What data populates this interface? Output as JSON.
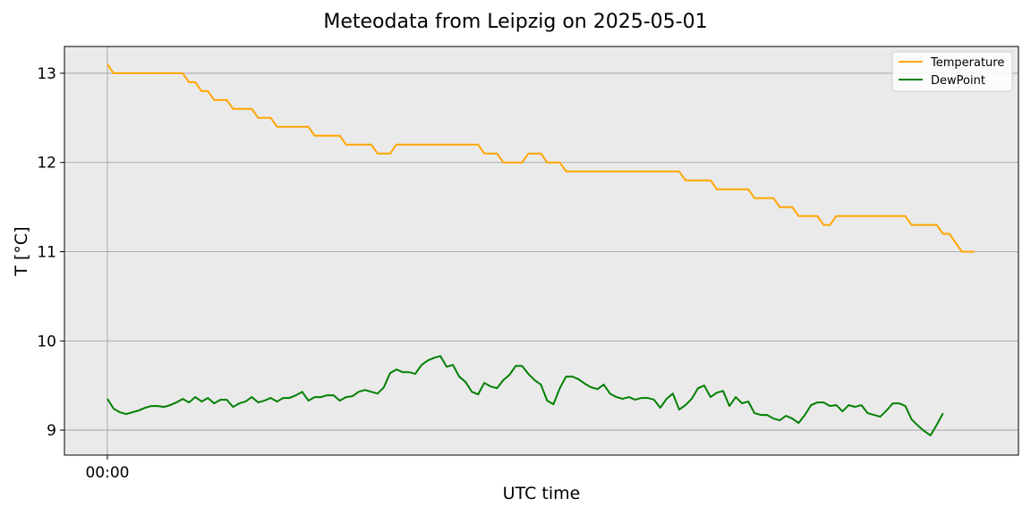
{
  "chart_data": {
    "type": "line",
    "title": "Meteodata from Leipzig on 2025-05-01",
    "xlabel": "UTC time",
    "ylabel": "T [°C]",
    "xlim": [
      -6.83,
      145.0
    ],
    "ylim": [
      8.72,
      13.3
    ],
    "x_tick_labels": [
      "00:00"
    ],
    "y_ticks": [
      9,
      10,
      11,
      12,
      13
    ],
    "grid": true,
    "legend_placement": "top-right",
    "series": [
      {
        "name": "Temperature",
        "color": "#ffa500",
        "values": [
          13.1,
          13.0,
          13.0,
          13.0,
          13.0,
          13.0,
          13.0,
          13.0,
          13.0,
          13.0,
          13.0,
          13.0,
          13.0,
          12.9,
          12.9,
          12.8,
          12.8,
          12.7,
          12.7,
          12.7,
          12.6,
          12.6,
          12.6,
          12.6,
          12.5,
          12.5,
          12.5,
          12.4,
          12.4,
          12.4,
          12.4,
          12.4,
          12.4,
          12.3,
          12.3,
          12.3,
          12.3,
          12.3,
          12.2,
          12.2,
          12.2,
          12.2,
          12.2,
          12.1,
          12.1,
          12.1,
          12.2,
          12.2,
          12.2,
          12.2,
          12.2,
          12.2,
          12.2,
          12.2,
          12.2,
          12.2,
          12.2,
          12.2,
          12.2,
          12.2,
          12.1,
          12.1,
          12.1,
          12.0,
          12.0,
          12.0,
          12.0,
          12.1,
          12.1,
          12.1,
          12.0,
          12.0,
          12.0,
          11.9,
          11.9,
          11.9,
          11.9,
          11.9,
          11.9,
          11.9,
          11.9,
          11.9,
          11.9,
          11.9,
          11.9,
          11.9,
          11.9,
          11.9,
          11.9,
          11.9,
          11.9,
          11.9,
          11.8,
          11.8,
          11.8,
          11.8,
          11.8,
          11.7,
          11.7,
          11.7,
          11.7,
          11.7,
          11.7,
          11.6,
          11.6,
          11.6,
          11.6,
          11.5,
          11.5,
          11.5,
          11.4,
          11.4,
          11.4,
          11.4,
          11.3,
          11.3,
          11.4,
          11.4,
          11.4,
          11.4,
          11.4,
          11.4,
          11.4,
          11.4,
          11.4,
          11.4,
          11.4,
          11.4,
          11.3,
          11.3,
          11.3,
          11.3,
          11.3,
          11.2,
          11.2,
          11.1,
          11.0,
          11.0,
          11.0
        ]
      },
      {
        "name": "DewPoint",
        "color": "#008000",
        "values": [
          9.35,
          9.24,
          9.2,
          9.18,
          9.2,
          9.22,
          9.25,
          9.27,
          9.27,
          9.26,
          9.28,
          9.31,
          9.35,
          9.31,
          9.37,
          9.32,
          9.36,
          9.3,
          9.34,
          9.34,
          9.26,
          9.3,
          9.32,
          9.37,
          9.31,
          9.33,
          9.36,
          9.32,
          9.36,
          9.36,
          9.39,
          9.43,
          9.33,
          9.37,
          9.37,
          9.39,
          9.39,
          9.33,
          9.37,
          9.38,
          9.43,
          9.45,
          9.43,
          9.41,
          9.48,
          9.64,
          9.68,
          9.65,
          9.65,
          9.63,
          9.73,
          9.78,
          9.81,
          9.83,
          9.71,
          9.73,
          9.6,
          9.54,
          9.43,
          9.4,
          9.53,
          9.49,
          9.47,
          9.56,
          9.62,
          9.72,
          9.72,
          9.63,
          9.56,
          9.51,
          9.33,
          9.29,
          9.47,
          9.6,
          9.6,
          9.57,
          9.52,
          9.48,
          9.46,
          9.51,
          9.41,
          9.37,
          9.35,
          9.37,
          9.34,
          9.36,
          9.36,
          9.34,
          9.25,
          9.35,
          9.41,
          9.23,
          9.28,
          9.35,
          9.47,
          9.5,
          9.37,
          9.42,
          9.44,
          9.27,
          9.37,
          9.3,
          9.32,
          9.19,
          9.17,
          9.17,
          9.13,
          9.11,
          9.16,
          9.13,
          9.08,
          9.17,
          9.28,
          9.31,
          9.31,
          9.27,
          9.28,
          9.21,
          9.28,
          9.26,
          9.28,
          9.19,
          9.17,
          9.15,
          9.22,
          9.3,
          9.3,
          9.27,
          9.12,
          9.05,
          8.99,
          8.94,
          9.06,
          9.19
        ]
      }
    ]
  }
}
